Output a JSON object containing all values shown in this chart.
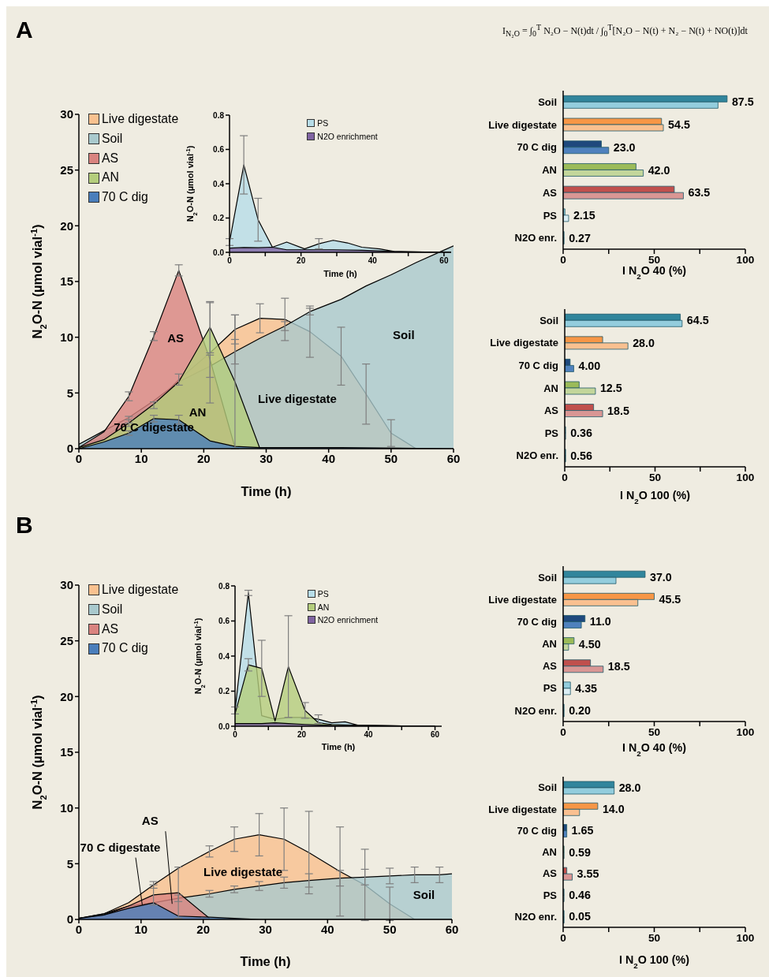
{
  "chart_data": [
    {
      "type": "area",
      "title": "A",
      "xlabel": "Time (h)",
      "ylabel": "N$_{2}$O-N (µmol vial$^{-1}$)",
      "xlim": [
        0,
        60
      ],
      "xticks": [
        0,
        10,
        20,
        30,
        40,
        50,
        60
      ],
      "ylim": [
        0,
        30
      ],
      "yticks": [
        0,
        5,
        10,
        15,
        20,
        25,
        30
      ],
      "legend": "top left",
      "marker": "none",
      "series": [
        {
          "name": "Live digestate",
          "color": "#f9c18f",
          "x": [
            0,
            4,
            8,
            12,
            16,
            21,
            25,
            29,
            33,
            37,
            42,
            46,
            50,
            54
          ],
          "values": [
            0.2,
            1.0,
            2.6,
            3.9,
            6.2,
            8.6,
            10.7,
            11.7,
            11.6,
            10.5,
            8.3,
            4.9,
            1.4,
            0
          ],
          "errors": [
            null,
            null,
            0.3,
            0.3,
            0.5,
            4.5,
            1.3,
            1.3,
            1.9,
            2.3,
            2.6,
            2.7,
            1.2,
            null
          ]
        },
        {
          "name": "Soil",
          "color": "#a9c9cd",
          "x": [
            0,
            4,
            8,
            12,
            16,
            21,
            25,
            29,
            33,
            37,
            42,
            46,
            50,
            54,
            58,
            60
          ],
          "values": [
            0.4,
            1.6,
            2.8,
            4.3,
            6.0,
            7.4,
            8.7,
            9.9,
            11.0,
            12.3,
            13.4,
            14.6,
            15.6,
            16.7,
            17.7,
            18.2
          ],
          "errors": [
            null,
            null,
            null,
            null,
            null,
            1.0,
            1.1,
            null,
            0.4,
            0.3,
            null,
            null,
            null,
            null,
            null,
            null
          ]
        },
        {
          "name": "AS",
          "color": "#d9837f",
          "x": [
            0,
            4,
            8,
            12,
            16,
            21,
            25
          ],
          "values": [
            0.1,
            1.5,
            4.7,
            10.1,
            16.0,
            8.0,
            0.1
          ],
          "errors": [
            null,
            null,
            0.4,
            0.4,
            0.5,
            null,
            null
          ]
        },
        {
          "name": "AN",
          "color": "#b4cd7c",
          "x": [
            0,
            4,
            8,
            12,
            16,
            21,
            25,
            29
          ],
          "values": [
            0.1,
            0.8,
            2.3,
            4.0,
            6.0,
            10.9,
            6.0,
            0
          ],
          "errors": [
            null,
            null,
            0.3,
            null,
            null,
            2.3,
            6.0,
            null
          ]
        },
        {
          "name": "70 C dig",
          "color": "#4a7ebb",
          "x": [
            0,
            4,
            8,
            12,
            16,
            21,
            25,
            29,
            42,
            60
          ],
          "values": [
            0,
            0.6,
            1.4,
            2.7,
            2.6,
            0.7,
            0.2,
            0.1,
            0.1,
            0
          ],
          "errors": [
            null,
            null,
            0.2,
            0.3,
            0.4,
            null,
            null,
            null,
            null,
            null
          ]
        }
      ],
      "annotations": [
        "AS",
        "AN",
        "70 C digestate",
        "Live digestate",
        "Soil"
      ]
    },
    {
      "type": "area",
      "xlabel": "Time (h)",
      "ylabel": "N$_{2}$O-N (µmol vial$^{-1}$)",
      "xlim": [
        0,
        62
      ],
      "xticks": [
        0,
        {
          "value": 10,
          "label": null
        },
        20,
        {
          "value": 30,
          "label": null
        },
        40,
        {
          "value": 50,
          "label": null
        },
        60
      ],
      "ylim": [
        0,
        0.8
      ],
      "yticks": [
        {
          "value": 0,
          "label": "0.0"
        },
        0.2,
        0.4,
        0.6,
        0.8
      ],
      "legend": "top",
      "marker": "none",
      "series": [
        {
          "name": "PS",
          "color": "#b7dde8",
          "x": [
            0,
            4,
            8,
            12,
            16,
            21,
            25,
            29,
            33,
            37,
            42,
            46,
            50,
            62
          ],
          "values": [
            0.06,
            0.51,
            0.19,
            0.03,
            0.06,
            0.02,
            0.05,
            0.07,
            0.055,
            0.03,
            0.02,
            0.005,
            0.003,
            0
          ],
          "errors": [
            0.02,
            0.17,
            0.125,
            null,
            null,
            null,
            0.03,
            null,
            null,
            null,
            null,
            null,
            null,
            null
          ]
        },
        {
          "name": "N2O enrichment",
          "color": "#8064a2",
          "x": [
            0,
            4,
            8,
            12,
            16,
            21,
            29,
            37,
            46,
            62
          ],
          "values": [
            0.025,
            0.028,
            0.027,
            0.03,
            0.015,
            0.015,
            0.015,
            0.012,
            0.005,
            0
          ]
        }
      ]
    },
    {
      "type": "bar",
      "orientation": "horizontal",
      "xlabel": "I N$_{2}$O 40 (%)",
      "categories": [
        "Soil",
        "Live digestate",
        "70 C dig",
        "AN",
        "AS",
        "PS",
        "N2O enr."
      ],
      "xlim": [
        0,
        100
      ],
      "xticks": [
        0,
        {
          "value": 25,
          "label": null
        },
        50,
        {
          "value": 75,
          "label": null
        },
        100
      ],
      "series": [
        {
          "colors": [
            "#31859c",
            "#f79646",
            "#1f497d",
            "#9bbb59",
            "#c0504d",
            "#93cddd",
            "#4bacc6"
          ],
          "values": [
            90,
            54,
            21,
            40,
            61,
            1,
            0.5
          ]
        },
        {
          "colors": [
            "#93cddd",
            "#fac090",
            "#4f81bd",
            "#c3d69b",
            "#d99694",
            "#dbeef4",
            "#31859c"
          ],
          "values": [
            85,
            55,
            25,
            44,
            66,
            3,
            0.5
          ]
        }
      ],
      "annotations": [
        "I$_{N₂O}$ = ∫$_{0}$$^{T}$ N₂O − N(t)dt / ∫$_{0}$$^{T}$[N₂O − N(t) + N₂ − N(t) + NO(t)]dt",
        {
          "text": "87.5",
          "x": 90,
          "y": "Soil"
        },
        {
          "text": "54.5",
          "x": 55,
          "y": "Live digestate"
        },
        {
          "text": "23.0",
          "x": 25,
          "y": "70 C dig"
        },
        {
          "text": "42.0",
          "x": 44,
          "y": "AN"
        },
        {
          "text": "63.5",
          "x": 66,
          "y": "AS"
        },
        {
          "text": "2.15",
          "x": 3,
          "y": "PS"
        },
        {
          "text": "0.27",
          "x": 0.5,
          "y": "N2O enr."
        }
      ]
    },
    {
      "type": "bar",
      "orientation": "horizontal",
      "xlabel": "I N$_{2}$O 100 (%)",
      "categories": [
        "Soil",
        "Live digestate",
        "70 C dig",
        "AN",
        "AS",
        "PS",
        "N2O enr."
      ],
      "xlim": [
        0,
        100
      ],
      "xticks": [
        0,
        {
          "value": 25,
          "label": null
        },
        50,
        {
          "value": 75,
          "label": null
        },
        100
      ],
      "series": [
        {
          "colors": [
            "#31859c",
            "#f79646",
            "#1f497d",
            "#9bbb59",
            "#c0504d",
            "#93cddd",
            "#4bacc6"
          ],
          "values": [
            64,
            21,
            3,
            8,
            16,
            0.5,
            0.5
          ]
        },
        {
          "colors": [
            "#93cddd",
            "#fac090",
            "#4f81bd",
            "#c3d69b",
            "#d99694",
            "#dbeef4",
            "#31859c"
          ],
          "values": [
            65,
            35,
            5,
            17,
            21,
            0.5,
            0.5
          ]
        }
      ],
      "annotations": [
        {
          "text": "64.5",
          "x": 65,
          "y": "Soil"
        },
        {
          "text": "28.0",
          "x": 35,
          "y": "Live digestate"
        },
        {
          "text": "4.00",
          "x": 5,
          "y": "70 C dig"
        },
        {
          "text": "12.5",
          "x": 17,
          "y": "AN"
        },
        {
          "text": "18.5",
          "x": 21,
          "y": "AS"
        },
        {
          "text": "0.36",
          "x": 0.5,
          "y": "PS"
        },
        {
          "text": "0.56",
          "x": 0.5,
          "y": "N2O enr."
        }
      ]
    },
    {
      "type": "area",
      "title": "B",
      "xlabel": "Time (h)",
      "ylabel": "N$_{2}$O-N (µmol vial$^{-1}$)",
      "xlim": [
        0,
        60
      ],
      "xticks": [
        0,
        10,
        20,
        30,
        40,
        50,
        60
      ],
      "ylim": [
        0,
        30
      ],
      "yticks": [
        0,
        5,
        10,
        15,
        20,
        25,
        30
      ],
      "legend": "top left",
      "marker": "none",
      "series": [
        {
          "name": "Live digestate",
          "color": "#f9c18f",
          "x": [
            0,
            4,
            8,
            12,
            16,
            21,
            25,
            29,
            33,
            37,
            42,
            46,
            50,
            54
          ],
          "values": [
            0.1,
            0.5,
            1.5,
            3.1,
            4.6,
            6.1,
            7.2,
            7.6,
            7.2,
            6.0,
            4.3,
            3.1,
            1.4,
            0
          ],
          "errors": [
            null,
            null,
            null,
            0.3,
            null,
            0.5,
            1.1,
            1.9,
            2.8,
            3.7,
            4.0,
            3.2,
            1.5,
            null
          ]
        },
        {
          "name": "Soil",
          "color": "#a9c9cd",
          "x": [
            0,
            4,
            8,
            12,
            16,
            21,
            25,
            29,
            33,
            37,
            42,
            46,
            50,
            54,
            58,
            60
          ],
          "values": [
            0.1,
            0.5,
            1.2,
            1.5,
            1.9,
            2.3,
            2.7,
            3.0,
            3.3,
            3.5,
            3.7,
            3.8,
            3.9,
            4.0,
            4.0,
            4.1
          ],
          "errors": [
            null,
            null,
            null,
            null,
            0.3,
            0.3,
            0.3,
            0.4,
            0.5,
            0.6,
            0.7,
            0.7,
            0.7,
            0.7,
            0.7,
            null
          ]
        },
        {
          "name": "AS",
          "color": "#d9837f",
          "x": [
            0,
            4,
            8,
            12,
            16,
            21
          ],
          "values": [
            0.1,
            0.4,
            1.2,
            2.2,
            2.4,
            0.1
          ],
          "errors": [
            null,
            null,
            null,
            0.9,
            2.3,
            null
          ]
        },
        {
          "name": "70 C dig",
          "color": "#4a7ebb",
          "x": [
            0,
            4,
            8,
            12,
            16,
            21,
            25,
            29,
            60
          ],
          "values": [
            0.1,
            0.4,
            1.0,
            1.5,
            0.3,
            0.2,
            0.1,
            0,
            0
          ],
          "errors": [
            null,
            null,
            null,
            null,
            null,
            null,
            null,
            null,
            null
          ]
        }
      ],
      "annotations": [
        "Live digestate",
        "Soil",
        {
          "text": "AS",
          "x": 15,
          "y": 1.4
        },
        {
          "text": "70 C digestate",
          "x": 10.2,
          "y": 1.3
        }
      ]
    },
    {
      "type": "area",
      "xlabel": "Time (h)",
      "ylabel": "N$_{2}$O-N (µmol vial$^{-1}$)",
      "xlim": [
        0,
        62
      ],
      "xticks": [
        0,
        {
          "value": 10,
          "label": null
        },
        20,
        {
          "value": 30,
          "label": null
        },
        40,
        {
          "value": 50,
          "label": null
        },
        60
      ],
      "ylim": [
        0,
        0.8
      ],
      "yticks": [
        {
          "value": 0,
          "label": "0.0"
        },
        0.2,
        0.4,
        0.6,
        0.8
      ],
      "legend": "top",
      "marker": "none",
      "series": [
        {
          "name": "PS",
          "color": "#b7dde8",
          "x": [
            0,
            4,
            8,
            12,
            16,
            21,
            25,
            29,
            33,
            37,
            60
          ],
          "values": [
            0.09,
            0.76,
            0.06,
            0.04,
            0.05,
            0.05,
            0.04,
            0.02,
            0.025,
            0.005,
            0
          ],
          "errors": [
            0.02,
            0.015,
            null,
            null,
            null,
            null,
            0.025,
            null,
            null,
            null,
            null
          ]
        },
        {
          "name": "AN",
          "color": "#b4cd7c",
          "x": [
            0,
            4,
            8,
            12,
            16,
            21,
            25,
            29,
            37,
            60
          ],
          "values": [
            0.07,
            0.35,
            0.33,
            0.03,
            0.34,
            0.09,
            0.02,
            0.01,
            0.005,
            0
          ],
          "errors": [
            null,
            0.035,
            0.16,
            null,
            0.29,
            0.045,
            null,
            null,
            null,
            null
          ]
        },
        {
          "name": "N2O enrichment",
          "color": "#8064a2",
          "x": [
            0,
            4,
            8,
            12,
            16,
            21,
            29,
            60
          ],
          "values": [
            0.015,
            0.015,
            0.015,
            0.02,
            0.015,
            0.01,
            0.005,
            0
          ]
        }
      ]
    },
    {
      "type": "bar",
      "orientation": "horizontal",
      "xlabel": "I N$_{2}$O 40 (%)",
      "categories": [
        "Soil",
        "Live digestate",
        "70 C dig",
        "AN",
        "AS",
        "PS",
        "N2O enr."
      ],
      "xlim": [
        0,
        100
      ],
      "xticks": [
        0,
        {
          "value": 25,
          "label": null
        },
        50,
        {
          "value": 75,
          "label": null
        },
        100
      ],
      "series": [
        {
          "colors": [
            "#31859c",
            "#f79646",
            "#1f497d",
            "#9bbb59",
            "#c0504d",
            "#93cddd",
            "#4bacc6"
          ],
          "values": [
            45,
            50,
            12,
            6,
            15,
            4,
            0.5
          ]
        },
        {
          "colors": [
            "#93cddd",
            "#fac090",
            "#4f81bd",
            "#c3d69b",
            "#d99694",
            "#dbeef4",
            "#31859c"
          ],
          "values": [
            29,
            41,
            10,
            3,
            22,
            4,
            0.5
          ]
        }
      ],
      "annotations": [
        {
          "text": "37.0",
          "x": 45,
          "y": "Soil"
        },
        {
          "text": "45.5",
          "x": 50,
          "y": "Live digestate"
        },
        {
          "text": "11.0",
          "x": 12,
          "y": "70 C dig"
        },
        {
          "text": "4.50",
          "x": 6,
          "y": "AN"
        },
        {
          "text": "18.5",
          "x": 22,
          "y": "AS"
        },
        {
          "text": "4.35",
          "x": 4,
          "y": "PS"
        },
        {
          "text": "0.20",
          "x": 0.5,
          "y": "N2O enr."
        }
      ]
    },
    {
      "type": "bar",
      "orientation": "horizontal",
      "xlabel": "I N$_{2}$O 100 (%)",
      "categories": [
        "Soil",
        "Live digestate",
        "70 C dig",
        "AN",
        "AS",
        "PS",
        "N2O enr."
      ],
      "xlim": [
        0,
        100
      ],
      "xticks": [
        0,
        {
          "value": 25,
          "label": null
        },
        50,
        {
          "value": 75,
          "label": null
        },
        100
      ],
      "series": [
        {
          "colors": [
            "#31859c",
            "#f79646",
            "#1f497d",
            "#9bbb59",
            "#c0504d",
            "#93cddd",
            "#4bacc6"
          ],
          "values": [
            28,
            19,
            2,
            0.5,
            2,
            0.5,
            0.5
          ]
        },
        {
          "colors": [
            "#93cddd",
            "#fac090",
            "#4f81bd",
            "#c3d69b",
            "#d99694",
            "#dbeef4",
            "#31859c"
          ],
          "values": [
            28,
            9,
            2,
            0.5,
            5,
            0.5,
            0.5
          ]
        }
      ],
      "annotations": [
        {
          "text": "28.0",
          "x": 28,
          "y": "Soil"
        },
        {
          "text": "14.0",
          "x": 19,
          "y": "Live digestate"
        },
        {
          "text": "1.65",
          "x": 2,
          "y": "70 C dig"
        },
        {
          "text": "0.59",
          "x": 0.5,
          "y": "AN"
        },
        {
          "text": "3.55",
          "x": 5,
          "y": "AS"
        },
        {
          "text": "0.46",
          "x": 0.5,
          "y": "PS"
        },
        {
          "text": "0.05",
          "x": 0.5,
          "y": "N2O enr."
        }
      ]
    }
  ]
}
